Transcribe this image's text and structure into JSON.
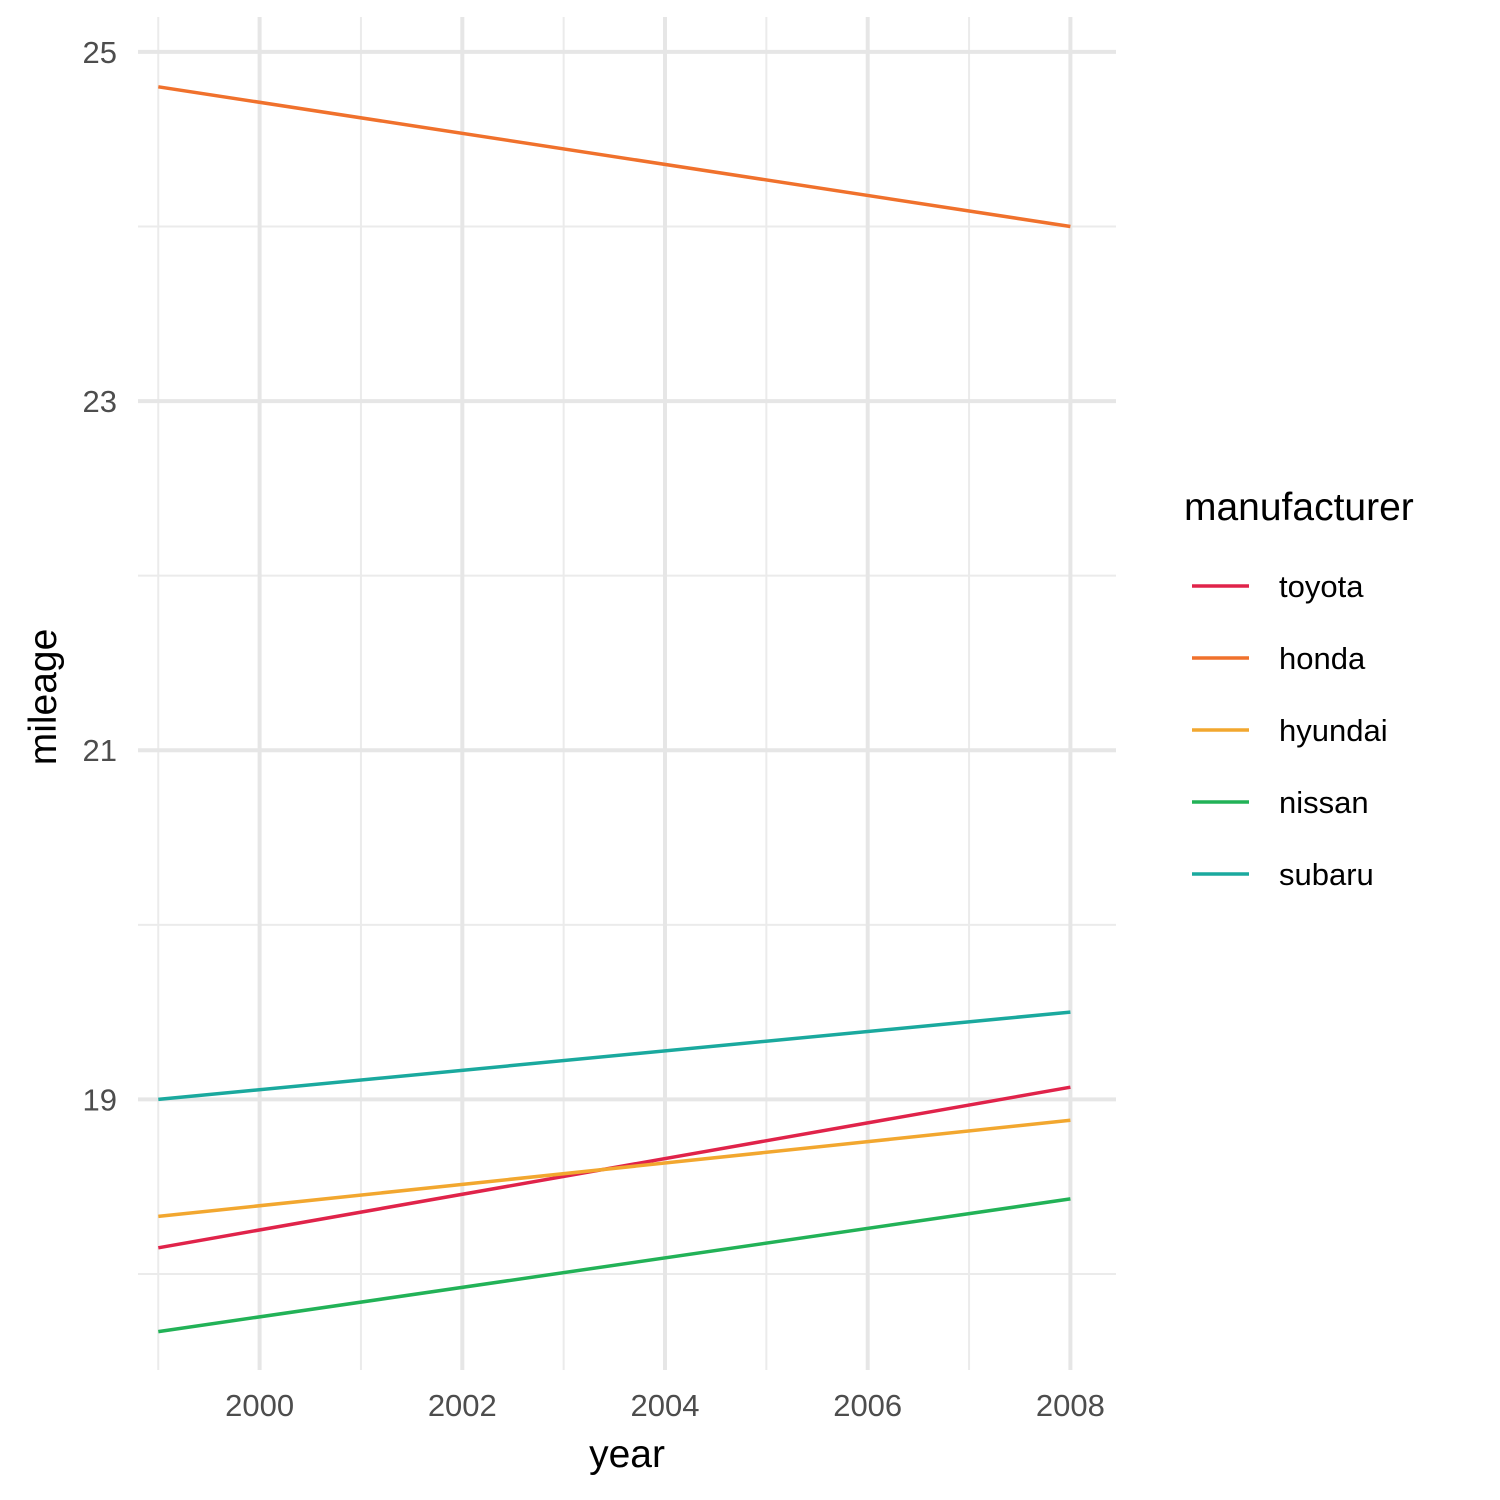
{
  "chart_data": {
    "type": "line",
    "title": "",
    "xlabel": "year",
    "ylabel": "mileage",
    "x": [
      1999,
      2008
    ],
    "xlim": [
      1998.8,
      2008.45
    ],
    "ylim": [
      17.45,
      25.2
    ],
    "x_ticks": [
      2000,
      2002,
      2004,
      2006,
      2008
    ],
    "x_tick_labels": [
      "2000",
      "2002",
      "2004",
      "2006",
      "2008"
    ],
    "y_ticks": [
      19,
      21,
      23,
      25
    ],
    "y_tick_labels": [
      "19",
      "21",
      "23",
      "25"
    ],
    "x_minor_ticks": [
      1999,
      2001,
      2003,
      2005,
      2007
    ],
    "y_minor_ticks": [
      18,
      20,
      22,
      24
    ],
    "grid": true,
    "legend": {
      "title": "manufacturer",
      "position": "right"
    },
    "series": [
      {
        "name": "toyota",
        "color": "#E0234A",
        "values": [
          18.15,
          19.07
        ]
      },
      {
        "name": "honda",
        "color": "#F0712C",
        "values": [
          24.8,
          24.0
        ]
      },
      {
        "name": "hyundai",
        "color": "#F2A72F",
        "values": [
          18.33,
          18.88
        ]
      },
      {
        "name": "nissan",
        "color": "#22B257",
        "values": [
          17.67,
          18.43
        ]
      },
      {
        "name": "subaru",
        "color": "#1AA99E",
        "values": [
          19.0,
          19.5
        ]
      }
    ]
  }
}
